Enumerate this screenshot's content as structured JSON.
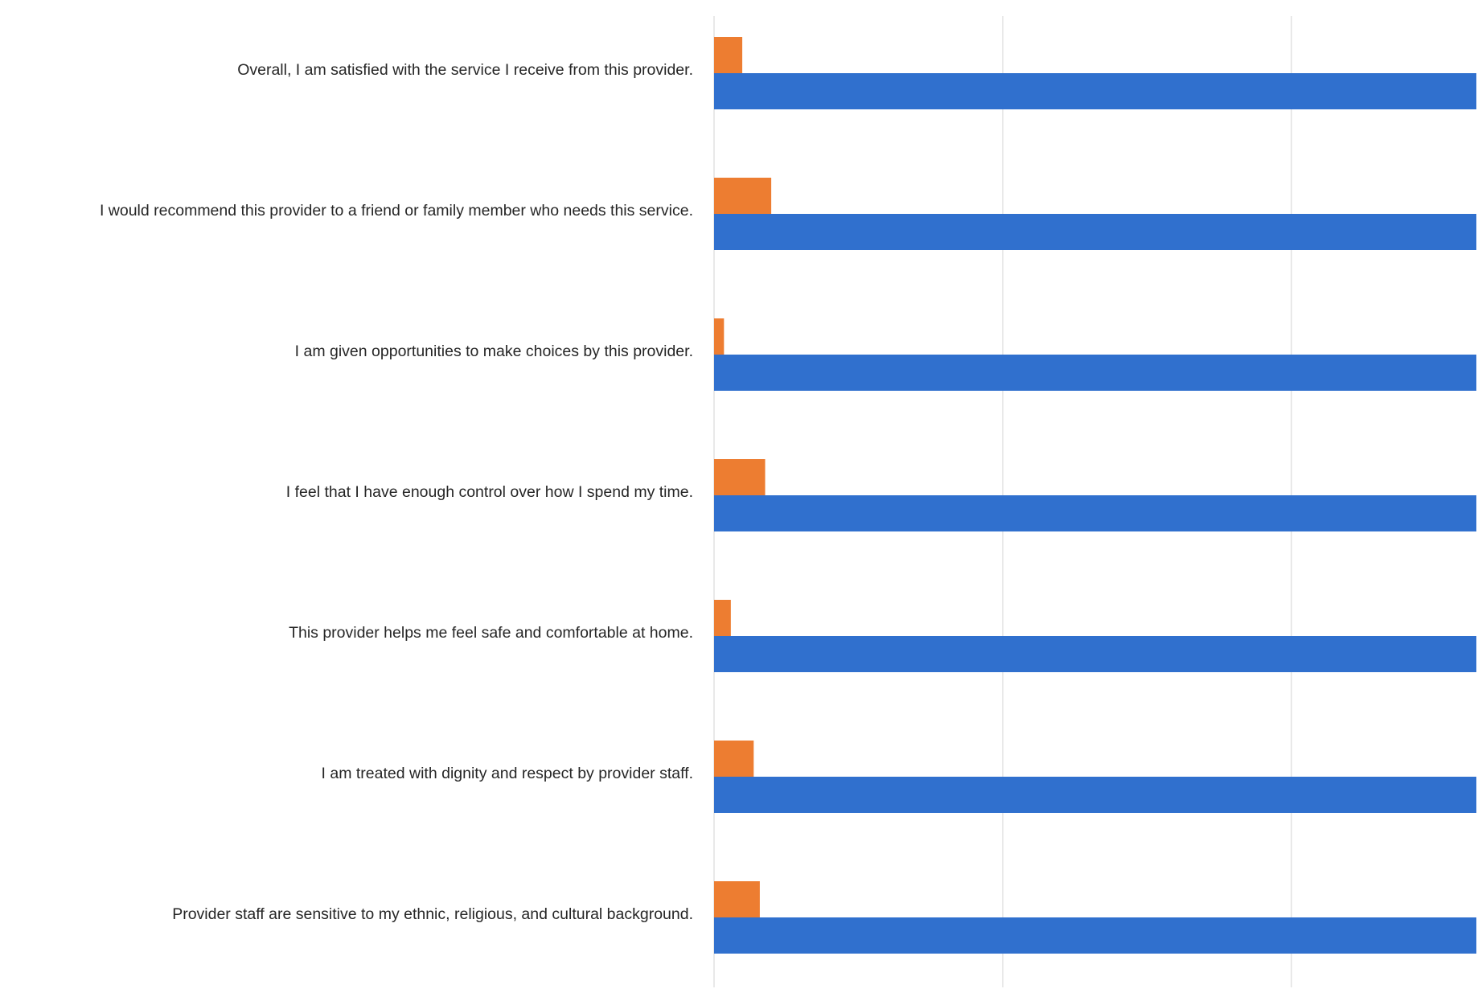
{
  "chart_data": {
    "type": "bar",
    "orientation": "horizontal",
    "categories": [
      "Overall, I am satisfied with the service I receive from this provider.",
      "I would recommend this provider to a friend or family member who needs this service.",
      "I am given opportunities to make choices by this provider.",
      "I feel that I have enough control over how I spend my time.",
      "This provider helps me feel safe and comfortable at home.",
      "I am treated with dignity and respect by provider staff.",
      "Provider staff are sensitive to my ethnic, religious, and cultural background."
    ],
    "series": [
      {
        "color": "#ED7D31",
        "values": [
          3.7,
          7.5,
          1.3,
          6.7,
          2.2,
          5.2,
          6.0
        ]
      },
      {
        "color": "#3070CE",
        "values": [
          100,
          100,
          100,
          100,
          100,
          100,
          100
        ]
      }
    ],
    "xlim": [
      0,
      100
    ],
    "grid": true,
    "legend": "none",
    "title": "",
    "xlabel": "",
    "ylabel": ""
  }
}
